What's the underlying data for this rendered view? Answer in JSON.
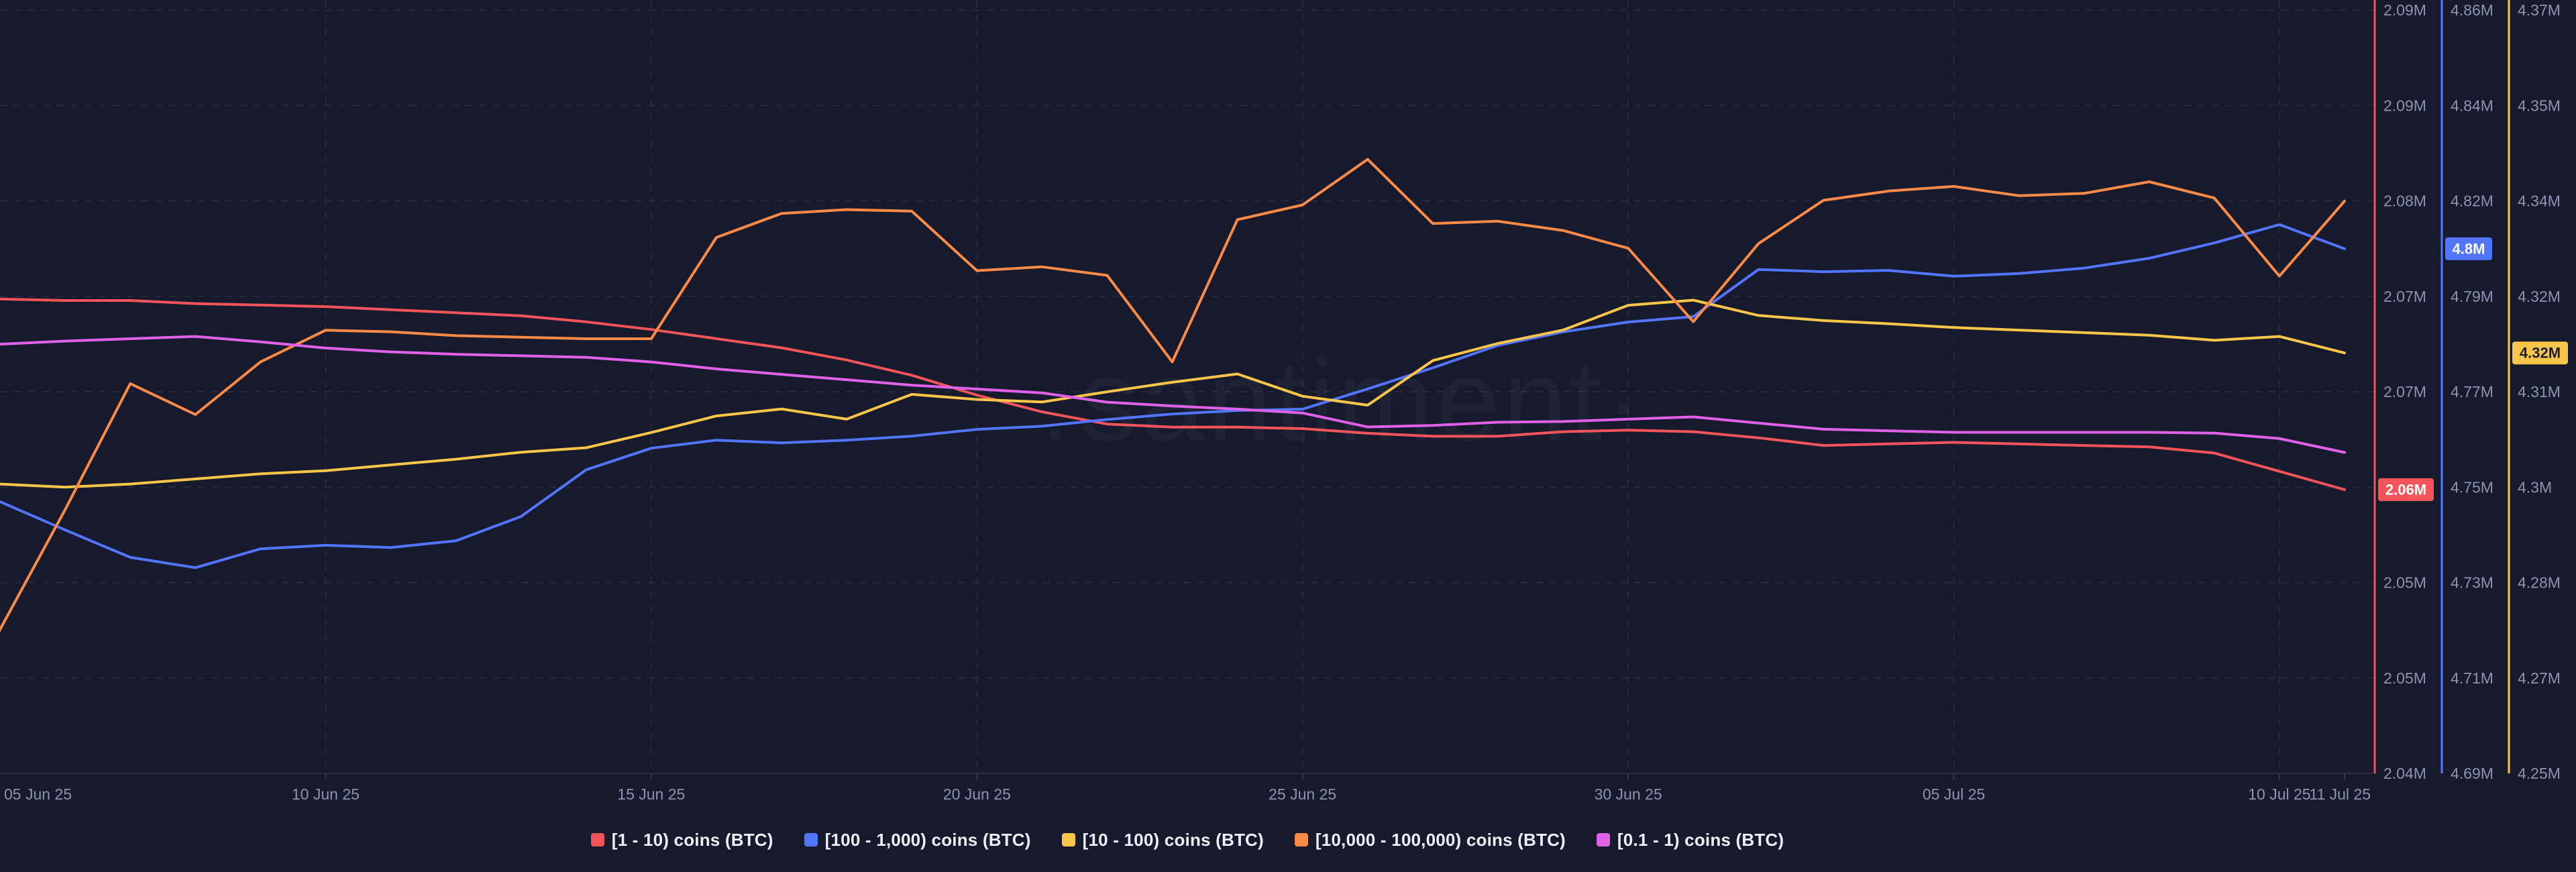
{
  "watermark": "santiment·",
  "colors": {
    "background": "#161A2C",
    "grid": "#3A4157",
    "axis_baseline": "#2A2F45",
    "tick_text": "#8C94B2",
    "legend_text": "#EDEFF7",
    "badge_text_light": "#FFFFFF",
    "badge_text_dark": "#1B2134"
  },
  "chart_data": {
    "type": "line",
    "title": "",
    "grid": true,
    "legend_position": "bottom",
    "x": [
      "04 Jun 25",
      "05 Jun 25",
      "06 Jun 25",
      "07 Jun 25",
      "08 Jun 25",
      "09 Jun 25",
      "10 Jun 25",
      "11 Jun 25",
      "12 Jun 25",
      "13 Jun 25",
      "14 Jun 25",
      "15 Jun 25",
      "16 Jun 25",
      "17 Jun 25",
      "18 Jun 25",
      "19 Jun 25",
      "20 Jun 25",
      "21 Jun 25",
      "22 Jun 25",
      "23 Jun 25",
      "24 Jun 25",
      "25 Jun 25",
      "26 Jun 25",
      "27 Jun 25",
      "28 Jun 25",
      "29 Jun 25",
      "30 Jun 25",
      "01 Jul 25",
      "02 Jul 25",
      "03 Jul 25",
      "04 Jul 25",
      "05 Jul 25",
      "06 Jul 25",
      "07 Jul 25",
      "08 Jul 25",
      "09 Jul 25",
      "10 Jul 25",
      "11 Jul 25"
    ],
    "x_axis": {
      "tick_indices": [
        1,
        6,
        11,
        16,
        21,
        26,
        31,
        36,
        37
      ],
      "tick_labels": [
        "05 Jun 25",
        "10 Jun 25",
        "15 Jun 25",
        "20 Jun 25",
        "25 Jun 25",
        "30 Jun 25",
        "05 Jul 25",
        "10 Jul 25",
        "11 Jul 25"
      ],
      "grid_indices": [
        6,
        11,
        16,
        21,
        26,
        31,
        36
      ]
    },
    "y_axes": [
      {
        "id": "red",
        "color": "#F25459",
        "value_top": 2.0932,
        "value_bottom": 2.0425,
        "tick_labels": [
          "2.09M",
          "2.09M",
          "2.08M",
          "2.07M",
          "2.07M",
          "2.06M",
          "2.05M",
          "2.05M",
          "2.04M"
        ],
        "badge_hides_tick_index": 5
      },
      {
        "id": "blue",
        "color": "#5275FF",
        "value_top": 4.8622,
        "value_bottom": 4.69,
        "tick_labels": [
          "4.86M",
          "4.84M",
          "4.82M",
          "4.79M",
          "4.77M",
          "4.75M",
          "4.73M",
          "4.71M",
          "4.69M"
        ]
      },
      {
        "id": "yellow",
        "color": "#F9C64A",
        "value_top": 4.3716,
        "value_bottom": 4.25,
        "tick_labels": [
          "4.37M",
          "4.35M",
          "4.34M",
          "4.32M",
          "4.31M",
          "4.3M",
          "4.28M",
          "4.27M",
          "4.25M"
        ]
      },
      {
        "id": "hidden",
        "color": "none",
        "value_top": 100,
        "value_bottom": 0,
        "tick_labels": []
      }
    ],
    "series": [
      {
        "key": "1-10",
        "name": "[1 - 10) coins (BTC)",
        "color": "#F25459",
        "axis": "red",
        "unit": "M",
        "badge": "2.06M",
        "values": [
          2.0737,
          2.0736,
          2.0735,
          2.0735,
          2.0733,
          2.0732,
          2.0731,
          2.0729,
          2.0727,
          2.0725,
          2.0721,
          2.0716,
          2.071,
          2.0704,
          2.0696,
          2.0686,
          2.0673,
          2.0662,
          2.0654,
          2.0652,
          2.0652,
          2.0651,
          2.0648,
          2.0646,
          2.0646,
          2.0649,
          2.065,
          2.0649,
          2.0645,
          2.064,
          2.0641,
          2.0642,
          2.0641,
          2.064,
          2.0639,
          2.0635,
          2.0623,
          2.0611
        ]
      },
      {
        "key": "100-1000",
        "name": "[100 - 1,000) coins (BTC)",
        "color": "#5275FF",
        "axis": "blue",
        "unit": "M",
        "badge": "4.8M",
        "values": [
          4.7558,
          4.7505,
          4.7442,
          4.7381,
          4.7358,
          4.74,
          4.7408,
          4.7403,
          4.7418,
          4.7472,
          4.7576,
          4.7624,
          4.7642,
          4.7636,
          4.7642,
          4.7651,
          4.7666,
          4.7673,
          4.7688,
          4.77,
          4.7708,
          4.7711,
          4.7756,
          4.7803,
          4.7853,
          4.7883,
          4.7905,
          4.7917,
          4.8022,
          4.8017,
          4.802,
          4.8007,
          4.8013,
          4.8025,
          4.8047,
          4.8081,
          4.8122,
          4.8068
        ]
      },
      {
        "key": "10-100",
        "name": "[10 - 100) coins (BTC)",
        "color": "#F9C64A",
        "axis": "yellow",
        "unit": "M",
        "badge": "4.32M",
        "values": [
          4.2957,
          4.2955,
          4.295,
          4.2955,
          4.2963,
          4.2971,
          4.2976,
          4.2985,
          4.2994,
          4.3005,
          4.3012,
          4.3036,
          4.3062,
          4.3073,
          4.3057,
          4.3096,
          4.3088,
          4.3084,
          4.31,
          4.3115,
          4.3128,
          4.3093,
          4.3079,
          4.3149,
          4.3176,
          4.3197,
          4.3236,
          4.3244,
          4.322,
          4.3212,
          4.3207,
          4.3201,
          4.3197,
          4.3193,
          4.3189,
          4.3181,
          4.3187,
          4.3161
        ]
      },
      {
        "key": "10000-100000",
        "name": "[10,000 - 100,000) coins (BTC)",
        "color": "#FC8A47",
        "axis": "hidden",
        "unit": "pct_of_plot_height",
        "values": [
          -0.6,
          18.6,
          34.1,
          50.4,
          46.4,
          53.2,
          57.3,
          57.1,
          56.6,
          56.4,
          56.2,
          56.2,
          69.3,
          72.4,
          72.9,
          72.7,
          65.0,
          65.5,
          64.4,
          53.2,
          71.6,
          73.5,
          79.4,
          71.1,
          71.4,
          70.2,
          67.9,
          58.4,
          68.5,
          74.1,
          75.3,
          75.9,
          74.7,
          75.0,
          76.5,
          74.4,
          64.3,
          74.0
        ]
      },
      {
        "key": "0.1-1",
        "name": "[0.1 - 1) coins (BTC)",
        "color": "#E160E8",
        "axis": "hidden",
        "unit": "pct_of_plot_height",
        "values": [
          55.2,
          55.5,
          55.9,
          56.2,
          56.5,
          55.8,
          55.0,
          54.5,
          54.2,
          54.0,
          53.8,
          53.2,
          52.3,
          51.6,
          50.9,
          50.2,
          49.7,
          49.2,
          48.0,
          47.5,
          47.1,
          46.6,
          44.8,
          45.0,
          45.4,
          45.5,
          45.8,
          46.1,
          45.3,
          44.5,
          44.3,
          44.1,
          44.1,
          44.1,
          44.1,
          44.0,
          43.3,
          41.5
        ]
      }
    ]
  }
}
